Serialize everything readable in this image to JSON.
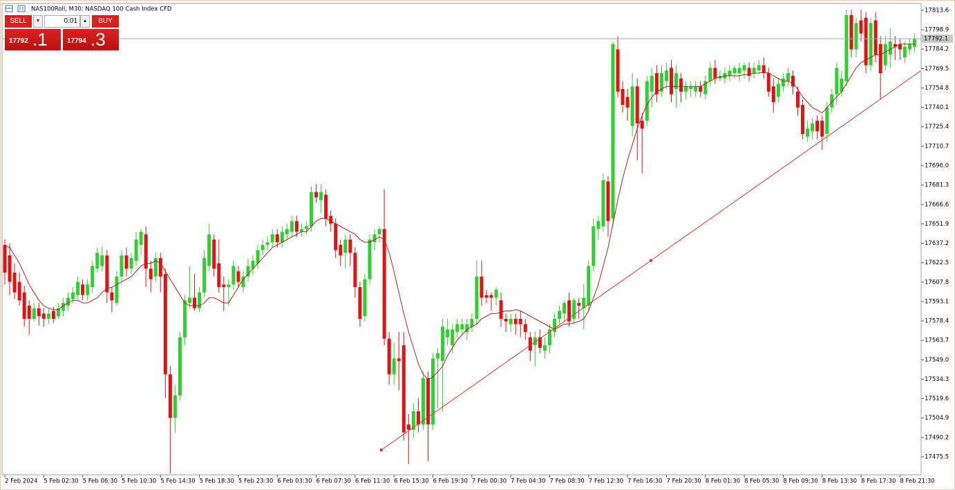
{
  "header": {
    "title": "NAS100Roll, M30:  NASDAQ 100 Cash Index CFD"
  },
  "trade_panel": {
    "sell_label": "SELL",
    "buy_label": "BUY",
    "lot": "0.01",
    "sell_main": "17792",
    "sell_frac": ".1",
    "buy_main": "17794",
    "buy_frac": ".3"
  },
  "chart_data": {
    "type": "candlestick",
    "up_color": "#32cd32",
    "down_color": "#dc1414",
    "ylim": [
      17461.9,
      17818.8
    ],
    "yticks": [
      17813.6,
      17798.9,
      17784.2,
      17769.5,
      17754.8,
      17740.1,
      17725.4,
      17710.7,
      {
        "value": 17696,
        "label": "17696.0"
      },
      17681.3,
      17666.6,
      17651.9,
      17637.2,
      17622.5,
      17607.8,
      17593.1,
      17578.4,
      17563.7,
      {
        "value": 17549,
        "label": "17549.0"
      },
      17534.3,
      17519.6,
      17504.9,
      17490.2,
      17475.5
    ],
    "bid": 17792.1,
    "categories": [
      "2 Feb 2024",
      null,
      null,
      null,
      null,
      null,
      null,
      null,
      "5 Feb 02:30",
      null,
      null,
      null,
      null,
      null,
      null,
      null,
      "5 Feb 06:30",
      null,
      null,
      null,
      null,
      null,
      null,
      null,
      "5 Feb 10:30",
      null,
      null,
      null,
      null,
      null,
      null,
      null,
      "5 Feb 14:30",
      null,
      null,
      null,
      null,
      null,
      null,
      null,
      "5 Feb 18:30",
      null,
      null,
      null,
      null,
      null,
      null,
      null,
      "5 Feb 23:30",
      null,
      null,
      null,
      null,
      null,
      null,
      null,
      "6 Feb 03:30",
      null,
      null,
      null,
      null,
      null,
      null,
      null,
      "6 Feb 07:30",
      null,
      null,
      null,
      null,
      null,
      null,
      null,
      "6 Feb 11:30",
      null,
      null,
      null,
      null,
      null,
      null,
      null,
      "6 Feb 15:30",
      null,
      null,
      null,
      null,
      null,
      null,
      null,
      "6 Feb 19:30",
      null,
      null,
      null,
      null,
      null,
      null,
      null,
      "7 Feb 00:30",
      null,
      null,
      null,
      null,
      null,
      null,
      null,
      "7 Feb 04:30",
      null,
      null,
      null,
      null,
      null,
      null,
      null,
      "7 Feb 08:30",
      null,
      null,
      null,
      null,
      null,
      null,
      null,
      "7 Feb 12:30",
      null,
      null,
      null,
      null,
      null,
      null,
      null,
      "7 Feb 16:30",
      null,
      null,
      null,
      null,
      null,
      null,
      null,
      "7 Feb 20:30",
      null,
      null,
      null,
      null,
      null,
      null,
      null,
      "8 Feb 01:30",
      null,
      null,
      null,
      null,
      null,
      null,
      null,
      "8 Feb 05:30",
      null,
      null,
      null,
      null,
      null,
      null,
      null,
      "8 Feb 09:30",
      null,
      null,
      null,
      null,
      null,
      null,
      null,
      "8 Feb 13:30",
      null,
      null,
      null,
      null,
      null,
      null,
      null,
      "8 Feb 17:30",
      null,
      null,
      null,
      null,
      null,
      null,
      null,
      "8 Feb 21:30",
      null,
      null,
      null
    ],
    "open": [
      17636,
      17628,
      17615,
      17608,
      17600,
      17590,
      17580,
      17588,
      17584,
      17580,
      17586,
      17582,
      17586,
      17590,
      17595,
      17598,
      17606,
      17598,
      17604,
      17618,
      17620,
      17628,
      17600,
      17592,
      17612,
      17628,
      17618,
      17624,
      17636,
      17644,
      17618,
      17612,
      17626,
      17614,
      17538,
      17505,
      17522,
      17566,
      17592,
      17596,
      17588,
      17600,
      17620,
      17640,
      17622,
      17606,
      17604,
      17606,
      17616,
      17604,
      17612,
      17618,
      17622,
      17632,
      17636,
      17638,
      17644,
      17638,
      17644,
      17646,
      17654,
      17646,
      17648,
      17650,
      17676,
      17670,
      17674,
      17658,
      17652,
      17636,
      17630,
      17640,
      17630,
      17604,
      17582,
      17610,
      17638,
      17644,
      17648,
      17565,
      17538,
      17550,
      17560,
      17500,
      17496,
      17510,
      17500,
      17535,
      17500,
      17550,
      17548,
      17566,
      17560,
      17570,
      17572,
      17570,
      17574,
      17580,
      17612,
      17598,
      17598,
      17596,
      17594,
      17580,
      17576,
      17580,
      17580,
      17576,
      17566,
      17560,
      17566,
      17556,
      17560,
      17570,
      17580,
      17584,
      17594,
      17580,
      17592,
      17588,
      17590,
      17620,
      17648,
      17650,
      17684,
      17656,
      17784,
      17754,
      17748,
      17726,
      17756,
      17730,
      17730,
      17752,
      17766,
      17752,
      17760,
      17770,
      17754,
      17762,
      17752,
      17754,
      17752,
      17756,
      17750,
      17760,
      17770,
      17762,
      17762,
      17764,
      17766,
      17766,
      17768,
      17770,
      17766,
      17768,
      17772,
      17766,
      17756,
      17748,
      17756,
      17760,
      17764,
      17752,
      17742,
      17718,
      17722,
      17730,
      17730,
      17720,
      17740,
      17750,
      17752,
      17760,
      17810,
      17784,
      17806,
      17808,
      17772,
      17806,
      17788,
      17772,
      17780,
      17788,
      17788,
      17778,
      17784,
      17786
    ],
    "high": [
      17640,
      17637,
      17622,
      17615,
      17605,
      17594,
      17592,
      17592,
      17588,
      17588,
      17589,
      17592,
      17596,
      17600,
      17604,
      17612,
      17610,
      17610,
      17624,
      17634,
      17635,
      17632,
      17604,
      17616,
      17632,
      17634,
      17630,
      17646,
      17648,
      17650,
      17624,
      17630,
      17630,
      17618,
      17544,
      17530,
      17570,
      17598,
      17620,
      17614,
      17604,
      17632,
      17652,
      17644,
      17640,
      17612,
      17610,
      17624,
      17620,
      17616,
      17626,
      17628,
      17636,
      17640,
      17642,
      17648,
      17648,
      17650,
      17652,
      17658,
      17658,
      17652,
      17654,
      17680,
      17682,
      17682,
      17678,
      17662,
      17656,
      17640,
      17644,
      17644,
      17634,
      17608,
      17614,
      17644,
      17648,
      17650,
      17678,
      17570,
      17562,
      17570,
      17570,
      17508,
      17516,
      17520,
      17540,
      17540,
      17554,
      17558,
      17580,
      17580,
      17576,
      17580,
      17580,
      17580,
      17584,
      17624,
      17624,
      17602,
      17600,
      17604,
      17600,
      17584,
      17584,
      17584,
      17586,
      17580,
      17570,
      17570,
      17572,
      17566,
      17576,
      17584,
      17590,
      17594,
      17600,
      17596,
      17596,
      17606,
      17624,
      17656,
      17658,
      17690,
      17688,
      17790,
      17794,
      17760,
      17754,
      17766,
      17762,
      17736,
      17764,
      17770,
      17772,
      17772,
      17774,
      17776,
      17772,
      17766,
      17760,
      17760,
      17760,
      17760,
      17764,
      17774,
      17776,
      17768,
      17770,
      17772,
      17772,
      17774,
      17774,
      17774,
      17774,
      17776,
      17778,
      17770,
      17762,
      17762,
      17766,
      17770,
      17768,
      17756,
      17746,
      17730,
      17732,
      17734,
      17734,
      17744,
      17754,
      17774,
      17768,
      17814,
      17814,
      17808,
      17814,
      17812,
      17808,
      17812,
      17794,
      17794,
      17800,
      17794,
      17792,
      17790,
      17792,
      17796
    ],
    "low": [
      17606,
      17598,
      17595,
      17590,
      17574,
      17568,
      17578,
      17575,
      17574,
      17576,
      17577,
      17580,
      17582,
      17586,
      17592,
      17595,
      17594,
      17594,
      17600,
      17615,
      17616,
      17592,
      17585,
      17590,
      17608,
      17612,
      17614,
      17620,
      17628,
      17604,
      17600,
      17608,
      17600,
      17520,
      17463,
      17494,
      17518,
      17560,
      17588,
      17586,
      17585,
      17596,
      17616,
      17612,
      17600,
      17586,
      17590,
      17602,
      17604,
      17600,
      17608,
      17614,
      17618,
      17628,
      17632,
      17634,
      17634,
      17634,
      17640,
      17642,
      17642,
      17642,
      17644,
      17646,
      17668,
      17660,
      17650,
      17646,
      17626,
      17620,
      17618,
      17620,
      17596,
      17574,
      17578,
      17606,
      17632,
      17638,
      17560,
      17530,
      17530,
      17526,
      17488,
      17470,
      17490,
      17494,
      17496,
      17472,
      17496,
      17512,
      17510,
      17560,
      17554,
      17566,
      17568,
      17564,
      17570,
      17576,
      17590,
      17592,
      17586,
      17590,
      17574,
      17570,
      17570,
      17568,
      17566,
      17564,
      17548,
      17544,
      17554,
      17550,
      17554,
      17566,
      17576,
      17578,
      17574,
      17576,
      17580,
      17572,
      17586,
      17616,
      17640,
      17646,
      17642,
      17650,
      17748,
      17736,
      17730,
      17718,
      17700,
      17690,
      17726,
      17740,
      17744,
      17748,
      17754,
      17744,
      17740,
      17744,
      17746,
      17748,
      17748,
      17748,
      17746,
      17756,
      17758,
      17760,
      17758,
      17760,
      17762,
      17760,
      17762,
      17760,
      17762,
      17766,
      17762,
      17748,
      17736,
      17744,
      17752,
      17756,
      17750,
      17734,
      17716,
      17714,
      17716,
      17716,
      17708,
      17714,
      17736,
      17742,
      17748,
      17756,
      17778,
      17778,
      17790,
      17766,
      17768,
      17774,
      17746,
      17768,
      17770,
      17776,
      17776,
      17774,
      17780,
      17782
    ],
    "close": [
      17615,
      17608,
      17600,
      17594,
      17580,
      17580,
      17588,
      17582,
      17580,
      17584,
      17580,
      17588,
      17592,
      17596,
      17600,
      17608,
      17598,
      17606,
      17620,
      17630,
      17628,
      17600,
      17594,
      17612,
      17628,
      17618,
      17626,
      17640,
      17646,
      17618,
      17610,
      17626,
      17612,
      17538,
      17505,
      17522,
      17566,
      17594,
      17596,
      17588,
      17600,
      17626,
      17644,
      17618,
      17604,
      17604,
      17606,
      17620,
      17608,
      17612,
      17620,
      17624,
      17632,
      17636,
      17638,
      17644,
      17638,
      17646,
      17648,
      17654,
      17646,
      17648,
      17650,
      17676,
      17672,
      17676,
      17656,
      17652,
      17632,
      17628,
      17640,
      17630,
      17604,
      17580,
      17610,
      17640,
      17644,
      17648,
      17565,
      17538,
      17550,
      17548,
      17494,
      17496,
      17510,
      17500,
      17535,
      17500,
      17550,
      17554,
      17574,
      17572,
      17572,
      17576,
      17576,
      17576,
      17580,
      17612,
      17596,
      17596,
      17596,
      17602,
      17580,
      17578,
      17580,
      17576,
      17576,
      17570,
      17556,
      17566,
      17558,
      17560,
      17572,
      17580,
      17586,
      17592,
      17578,
      17594,
      17590,
      17596,
      17620,
      17650,
      17654,
      17685,
      17654,
      17788,
      17752,
      17742,
      17740,
      17756,
      17728,
      17724,
      17760,
      17764,
      17750,
      17766,
      17768,
      17750,
      17766,
      17752,
      17756,
      17756,
      17756,
      17752,
      17760,
      17770,
      17762,
      17764,
      17766,
      17768,
      17770,
      17770,
      17772,
      17764,
      17770,
      17772,
      17766,
      17752,
      17744,
      17758,
      17762,
      17766,
      17756,
      17740,
      17720,
      17724,
      17728,
      17722,
      17718,
      17740,
      17750,
      17770,
      17762,
      17810,
      17784,
      17804,
      17796,
      17772,
      17804,
      17780,
      17766,
      17788,
      17790,
      17786,
      17784,
      17786,
      17788,
      17792
    ],
    "moving_average": {
      "color": "#b21e1e",
      "values": [
        17636,
        17634,
        17628,
        17622,
        17614,
        17606,
        17600,
        17594,
        17590,
        17588,
        17587,
        17587,
        17590,
        17592,
        17594,
        17594,
        17592,
        17592,
        17594,
        17596,
        17600,
        17603,
        17604,
        17606,
        17608,
        17610,
        17612,
        17616,
        17620,
        17622,
        17622,
        17624,
        17622,
        17616,
        17610,
        17604,
        17598,
        17592,
        17590,
        17590,
        17590,
        17592,
        17596,
        17596,
        17594,
        17592,
        17592,
        17598,
        17604,
        17610,
        17614,
        17618,
        17622,
        17626,
        17630,
        17634,
        17636,
        17638,
        17640,
        17642,
        17644,
        17646,
        17646,
        17650,
        17654,
        17656,
        17656,
        17654,
        17652,
        17650,
        17648,
        17646,
        17644,
        17640,
        17638,
        17638,
        17640,
        17642,
        17640,
        17630,
        17616,
        17600,
        17584,
        17570,
        17558,
        17546,
        17538,
        17534,
        17536,
        17540,
        17544,
        17552,
        17558,
        17564,
        17568,
        17572,
        17574,
        17576,
        17580,
        17582,
        17584,
        17584,
        17585,
        17586,
        17586,
        17587,
        17586,
        17584,
        17582,
        17580,
        17578,
        17576,
        17574,
        17572,
        17574,
        17576,
        17576,
        17577,
        17578,
        17580,
        17586,
        17596,
        17606,
        17620,
        17634,
        17652,
        17670,
        17686,
        17700,
        17712,
        17724,
        17734,
        17742,
        17748,
        17752,
        17754,
        17756,
        17756,
        17756,
        17756,
        17756,
        17756,
        17756,
        17756,
        17758,
        17760,
        17762,
        17763,
        17764,
        17764,
        17764,
        17764,
        17765,
        17765,
        17766,
        17766,
        17767,
        17766,
        17764,
        17762,
        17760,
        17760,
        17758,
        17754,
        17748,
        17744,
        17740,
        17738,
        17736,
        17740,
        17744,
        17748,
        17752,
        17758,
        17764,
        17770,
        17774,
        17776,
        17778,
        17780,
        17780,
        17782,
        17784,
        17786,
        17788,
        17788,
        17788,
        17788
      ]
    },
    "trendline": {
      "color": "#d43a3a",
      "x": [
        77.4,
        188.2
      ],
      "y": [
        17480.7,
        17767.6
      ]
    }
  }
}
